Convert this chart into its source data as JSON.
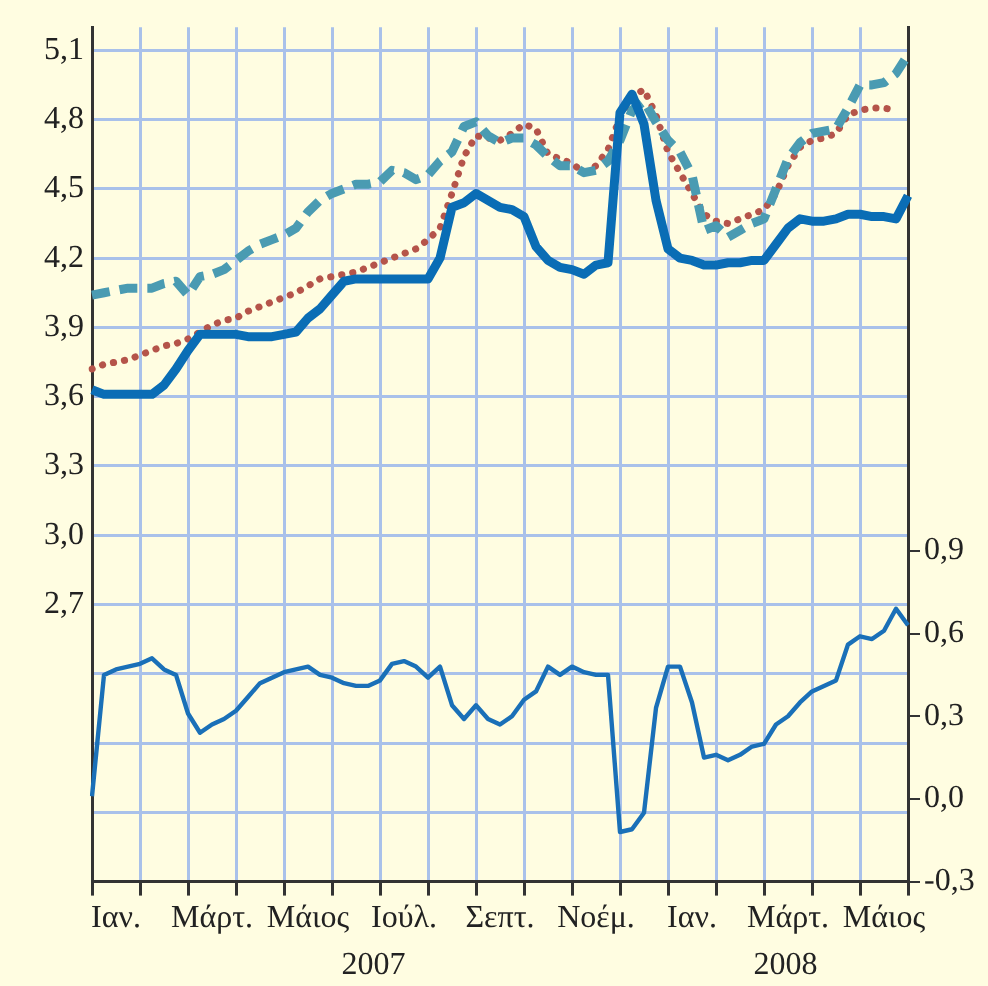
{
  "chart_data": {
    "type": "line",
    "categories": [
      null,
      null,
      "Ιαν.",
      null,
      null,
      null,
      null,
      null,
      null,
      null,
      "Μάρτ.",
      null,
      null,
      null,
      null,
      null,
      null,
      null,
      "Μάιος",
      null,
      null,
      null,
      null,
      null,
      null,
      null,
      "Ιούλ.",
      null,
      null,
      null,
      null,
      null,
      null,
      null,
      "Σεπτ.",
      null,
      null,
      null,
      null,
      null,
      null,
      null,
      "Νοέμ.",
      null,
      null,
      null,
      null,
      null,
      null,
      null,
      "Ιαν.",
      null,
      null,
      null,
      null,
      null,
      null,
      null,
      "Μάρτ.",
      null,
      null,
      null,
      null,
      null,
      null,
      null,
      "Μάιος",
      null,
      null
    ],
    "ylim": [
      1.5,
      5.2
    ],
    "yticks": [
      {
        "value": 1.5,
        "label": null
      },
      {
        "value": 1.8,
        "label": null
      },
      {
        "value": 2.1,
        "label": null
      },
      {
        "value": 2.4,
        "label": null
      },
      {
        "value": 2.7,
        "label": "2,7"
      },
      {
        "value": 3.0,
        "label": "3,0"
      },
      {
        "value": 3.3,
        "label": "3,3"
      },
      {
        "value": 3.6,
        "label": "3,6"
      },
      {
        "value": 3.9,
        "label": "3,9"
      },
      {
        "value": 4.2,
        "label": "4,2"
      },
      {
        "value": 4.5,
        "label": "4,5"
      },
      {
        "value": 4.8,
        "label": "4,8"
      },
      {
        "value": 5.1,
        "label": "5,1"
      }
    ],
    "y2lim": [
      -0.3,
      2.8
    ],
    "y2ticks": [
      {
        "value": -0.3,
        "label": "-0,3"
      },
      {
        "value": 0,
        "label": "0,0"
      },
      {
        "value": 0.3,
        "label": "0,3"
      },
      {
        "value": 0.6,
        "label": "0,6"
      },
      {
        "value": 0.9,
        "label": "0,9"
      }
    ],
    "grid": true,
    "legend": false,
    "annotations": [
      "2007",
      "2008"
    ],
    "series": [
      {
        "color": "#0a6db5",
        "line_style": "solid",
        "values": [
          3.63,
          3.61,
          3.61,
          3.61,
          3.61,
          3.61,
          3.65,
          3.72,
          3.8,
          3.87,
          3.87,
          3.87,
          3.87,
          3.86,
          3.86,
          3.86,
          3.87,
          3.88,
          3.94,
          3.98,
          4.04,
          4.1,
          4.11,
          4.11,
          4.11,
          4.11,
          4.11,
          4.11,
          4.11,
          4.2,
          4.42,
          4.44,
          4.48,
          4.45,
          4.42,
          4.41,
          4.38,
          4.25,
          4.19,
          4.16,
          4.15,
          4.13,
          4.17,
          4.18,
          4.83,
          4.91,
          4.78,
          4.45,
          4.24,
          4.2,
          4.19,
          4.17,
          4.17,
          4.18,
          4.18,
          4.19,
          4.19,
          4.26,
          4.33,
          4.37,
          4.36,
          4.36,
          4.37,
          4.39,
          4.39,
          4.38,
          4.38,
          4.37,
          4.47
        ]
      },
      {
        "color": "#4a9bb2",
        "line_style": "dashed",
        "values": [
          4.04,
          4.05,
          4.06,
          4.07,
          4.07,
          4.07,
          4.09,
          4.1,
          4.04,
          4.12,
          4.13,
          4.15,
          4.19,
          4.23,
          4.26,
          4.28,
          4.3,
          4.33,
          4.4,
          4.45,
          4.48,
          4.5,
          4.52,
          4.52,
          4.53,
          4.58,
          4.57,
          4.54,
          4.56,
          4.62,
          4.66,
          4.77,
          4.79,
          4.73,
          4.7,
          4.72,
          4.72,
          4.69,
          4.64,
          4.6,
          4.6,
          4.57,
          4.58,
          4.62,
          4.71,
          4.84,
          4.88,
          4.79,
          4.71,
          4.66,
          4.56,
          4.32,
          4.34,
          4.29,
          4.32,
          4.35,
          4.37,
          4.5,
          4.63,
          4.7,
          4.74,
          4.75,
          4.76,
          4.85,
          4.95,
          4.95,
          4.96,
          5.0,
          5.08
        ]
      },
      {
        "color": "#b5544a",
        "line_style": "dotted",
        "values": [
          3.72,
          3.74,
          3.75,
          3.76,
          3.78,
          3.8,
          3.82,
          3.83,
          3.85,
          3.88,
          3.91,
          3.93,
          3.94,
          3.97,
          3.99,
          4.01,
          4.03,
          4.05,
          4.08,
          4.11,
          4.12,
          4.13,
          4.14,
          4.16,
          4.18,
          4.2,
          4.22,
          4.24,
          4.28,
          4.33,
          4.48,
          4.64,
          4.73,
          4.72,
          4.71,
          4.74,
          4.78,
          4.76,
          4.65,
          4.63,
          4.61,
          4.57,
          4.6,
          4.67,
          4.81,
          4.9,
          4.93,
          4.82,
          4.66,
          4.57,
          4.48,
          4.39,
          4.36,
          4.35,
          4.37,
          4.39,
          4.41,
          4.48,
          4.6,
          4.68,
          4.71,
          4.72,
          4.74,
          4.82,
          4.84,
          4.85,
          4.85,
          4.84,
          null
        ]
      },
      {
        "color": "#1a70b8",
        "line_style": "solid",
        "axis": "y2",
        "values": [
          0.01,
          0.45,
          0.47,
          0.48,
          0.49,
          0.51,
          0.47,
          0.45,
          0.31,
          0.24,
          0.27,
          0.29,
          0.32,
          0.37,
          0.42,
          0.44,
          0.46,
          0.47,
          0.48,
          0.45,
          0.44,
          0.42,
          0.41,
          0.41,
          0.43,
          0.49,
          0.5,
          0.48,
          0.44,
          0.48,
          0.34,
          0.29,
          0.34,
          0.29,
          0.27,
          0.3,
          0.36,
          0.39,
          0.48,
          0.45,
          0.48,
          0.46,
          0.45,
          0.45,
          -0.12,
          -0.11,
          -0.05,
          0.33,
          0.48,
          0.48,
          0.35,
          0.15,
          0.16,
          0.14,
          0.16,
          0.19,
          0.2,
          0.27,
          0.3,
          0.35,
          0.39,
          0.41,
          0.43,
          0.56,
          0.59,
          0.58,
          0.61,
          0.69,
          0.63
        ]
      }
    ]
  }
}
